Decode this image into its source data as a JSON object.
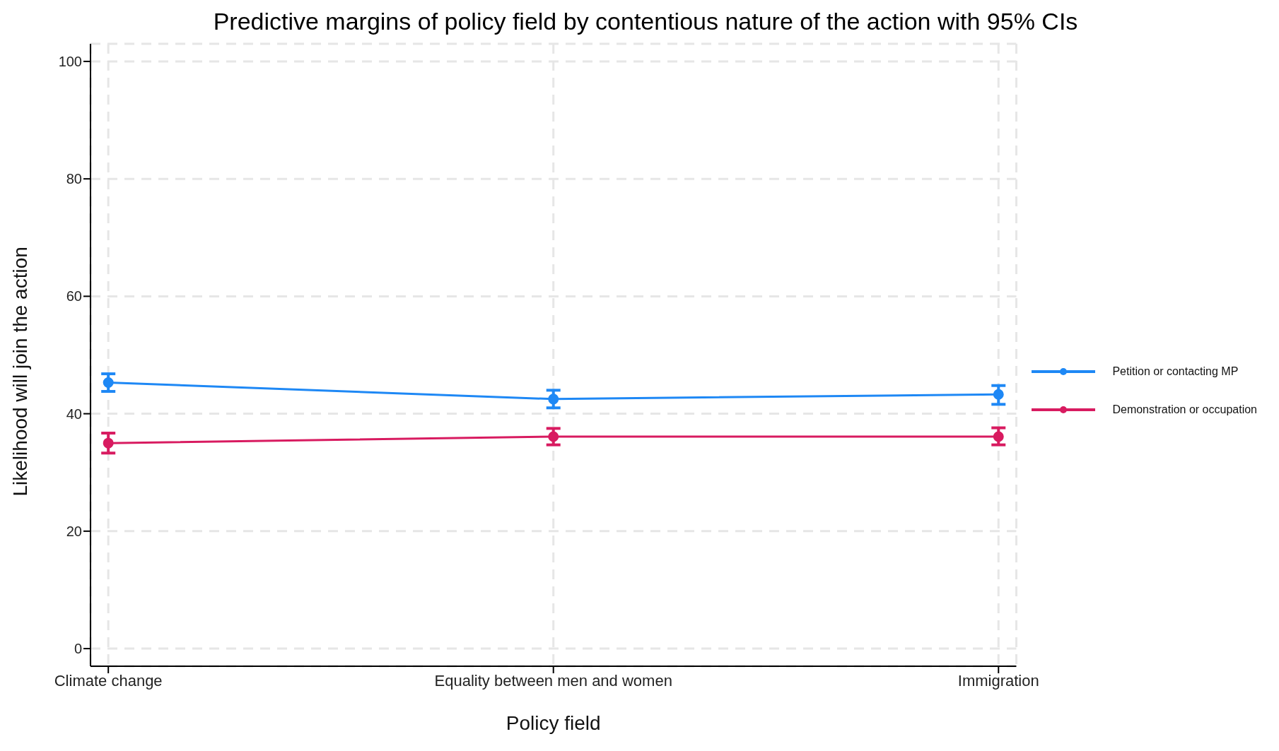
{
  "chart_data": {
    "type": "line",
    "title": "Predictive margins of policy field by contentious nature of the action with 95% CIs",
    "xlabel": "Policy field",
    "ylabel": "Likelihood will join the action",
    "categories": [
      "Climate change",
      "Equality between men and women",
      "Immigration"
    ],
    "series": [
      {
        "name": "Petition or contacting MP",
        "color": "#1e88f5",
        "values": [
          45.3,
          42.5,
          43.3
        ],
        "errors": [
          [
            43.8,
            46.8
          ],
          [
            41.0,
            44.0
          ],
          [
            41.6,
            44.8
          ]
        ]
      },
      {
        "name": "Demonstration or occupation",
        "color": "#d81b60",
        "values": [
          35.0,
          36.1,
          36.1
        ],
        "errors": [
          [
            33.3,
            36.7
          ],
          [
            34.7,
            37.5
          ],
          [
            34.7,
            37.6
          ]
        ]
      }
    ],
    "ylim": [
      -3,
      103
    ],
    "yticks": [
      0,
      20,
      40,
      60,
      80,
      100
    ],
    "grid": true,
    "legend": "right",
    "marker": "circle",
    "line_style": "solid"
  }
}
